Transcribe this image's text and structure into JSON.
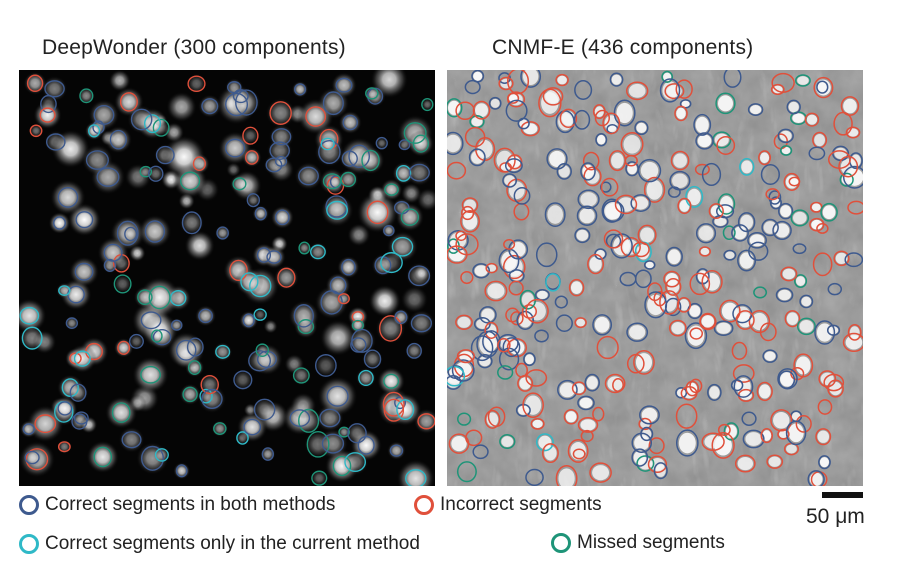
{
  "panels": [
    {
      "title": "DeepWonder (300 components)",
      "kind": "dark"
    },
    {
      "title": "CNMF-E (436 components)",
      "kind": "grey"
    }
  ],
  "legend": {
    "both": {
      "label": "Correct segments in both methods",
      "color": "#3e5a8e"
    },
    "incorrect": {
      "label": "Incorrect segments",
      "color": "#e0503b"
    },
    "only": {
      "label": "Correct segments only in the current method",
      "color": "#2fb9c7"
    },
    "missed": {
      "label": "Missed segments",
      "color": "#1e9478"
    }
  },
  "scalebar": {
    "label": "50 μm"
  }
}
